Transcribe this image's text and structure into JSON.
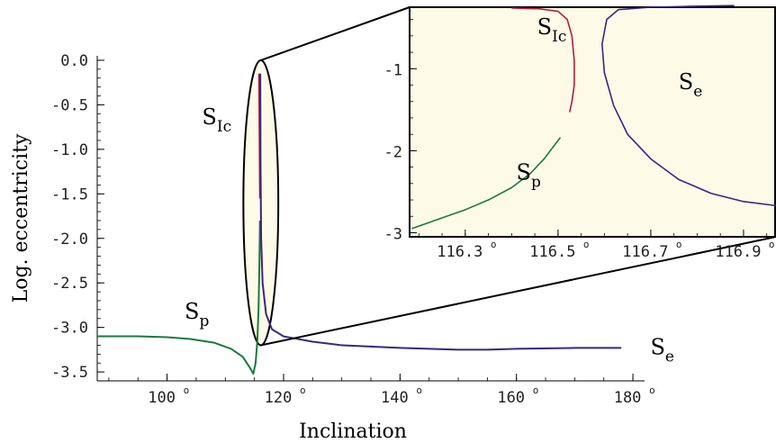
{
  "chart_data": [
    {
      "type": "line",
      "name": "main",
      "xlabel": "Inclination",
      "ylabel": "Log. eccentricity",
      "xlim": [
        88,
        182
      ],
      "ylim": [
        -3.6,
        0.05
      ],
      "x_ticks": [
        100,
        120,
        140,
        160,
        180
      ],
      "x_tick_labels": [
        "100",
        "120",
        "140",
        "160",
        "180"
      ],
      "x_tick_suffix": "o",
      "y_ticks": [
        0.0,
        -0.5,
        -1.0,
        -1.5,
        -2.0,
        -2.5,
        -3.0,
        -3.5
      ],
      "y_tick_labels": [
        "0.0",
        "-0.5",
        "-1.0",
        "-1.5",
        "-2.0",
        "-2.5",
        "-3.0",
        "-3.5"
      ],
      "grid": false,
      "series": [
        {
          "name": "Sp",
          "color": "#1a7a3c",
          "points": [
            [
              88,
              -3.1
            ],
            [
              95,
              -3.1
            ],
            [
              100,
              -3.11
            ],
            [
              104,
              -3.13
            ],
            [
              108,
              -3.17
            ],
            [
              111,
              -3.24
            ],
            [
              113,
              -3.33
            ],
            [
              114.2,
              -3.45
            ],
            [
              114.8,
              -3.52
            ],
            [
              115.2,
              -3.4
            ],
            [
              115.5,
              -3.15
            ],
            [
              115.7,
              -2.8
            ],
            [
              115.85,
              -2.3
            ],
            [
              115.95,
              -1.8
            ]
          ]
        },
        {
          "name": "SIc",
          "color": "#b81c3c",
          "points": [
            [
              115.8,
              -0.15
            ],
            [
              115.85,
              -0.6
            ],
            [
              115.9,
              -1.1
            ],
            [
              115.95,
              -1.55
            ]
          ]
        },
        {
          "name": "Se",
          "color": "#3a2580",
          "points": [
            [
              116.0,
              -0.15
            ],
            [
              116.05,
              -1.2
            ],
            [
              116.15,
              -2.0
            ],
            [
              116.4,
              -2.5
            ],
            [
              117,
              -2.85
            ],
            [
              118,
              -3.02
            ],
            [
              120,
              -3.1
            ],
            [
              125,
              -3.16
            ],
            [
              130,
              -3.2
            ],
            [
              140,
              -3.23
            ],
            [
              145,
              -3.24
            ],
            [
              150,
              -3.25
            ],
            [
              155,
              -3.25
            ],
            [
              160,
              -3.24
            ],
            [
              170,
              -3.23
            ],
            [
              178,
              -3.23
            ]
          ]
        }
      ],
      "annotations": [
        {
          "text": "S",
          "sub": "p",
          "x": 103,
          "y": -2.9
        },
        {
          "text": "S",
          "sub": "Ic",
          "x": 106,
          "y": -0.72
        },
        {
          "text": "S",
          "sub": "e",
          "x": 183,
          "y": -3.3
        }
      ],
      "ellipse_zoom": {
        "center": [
          116.1,
          -1.6
        ],
        "semi_x": 3.0,
        "semi_y": 1.6
      }
    },
    {
      "type": "line",
      "name": "inset",
      "xlim": [
        116.18,
        116.97
      ],
      "ylim": [
        -3.05,
        -0.25
      ],
      "x_ticks": [
        116.3,
        116.5,
        116.7,
        116.9
      ],
      "x_tick_labels": [
        "116.3",
        "116.5",
        "116.7",
        "116.9"
      ],
      "x_tick_suffix": "o",
      "y_ticks": [
        -1,
        -2,
        -3
      ],
      "y_tick_labels": [
        "-1",
        "-2",
        "-3"
      ],
      "grid": false,
      "background": "#fdfbe8",
      "series": [
        {
          "name": "Sp",
          "color": "#1a7a3c",
          "points": [
            [
              116.185,
              -2.95
            ],
            [
              116.25,
              -2.82
            ],
            [
              116.3,
              -2.72
            ],
            [
              116.35,
              -2.6
            ],
            [
              116.4,
              -2.45
            ],
            [
              116.44,
              -2.28
            ],
            [
              116.47,
              -2.1
            ],
            [
              116.49,
              -1.95
            ],
            [
              116.505,
              -1.84
            ]
          ]
        },
        {
          "name": "SIc",
          "color": "#b81c3c",
          "points": [
            [
              116.4,
              -0.26
            ],
            [
              116.46,
              -0.27
            ],
            [
              116.5,
              -0.3
            ],
            [
              116.52,
              -0.4
            ],
            [
              116.53,
              -0.6
            ],
            [
              116.535,
              -0.9
            ],
            [
              116.535,
              -1.2
            ],
            [
              116.53,
              -1.4
            ],
            [
              116.525,
              -1.53
            ]
          ]
        },
        {
          "name": "Se",
          "color": "#3a2580",
          "points": [
            [
              116.88,
              -0.23
            ],
            [
              116.78,
              -0.24
            ],
            [
              116.7,
              -0.25
            ],
            [
              116.63,
              -0.28
            ],
            [
              116.605,
              -0.4
            ],
            [
              116.595,
              -0.7
            ],
            [
              116.6,
              -1.05
            ],
            [
              116.62,
              -1.45
            ],
            [
              116.65,
              -1.8
            ],
            [
              116.7,
              -2.1
            ],
            [
              116.76,
              -2.35
            ],
            [
              116.83,
              -2.52
            ],
            [
              116.9,
              -2.62
            ],
            [
              116.97,
              -2.67
            ]
          ]
        }
      ],
      "annotations": [
        {
          "text": "S",
          "sub": "Ic",
          "x": 116.455,
          "y": -0.58
        },
        {
          "text": "S",
          "sub": "e",
          "x": 116.76,
          "y": -1.25
        },
        {
          "text": "S",
          "sub": "p",
          "x": 116.41,
          "y": -2.35
        }
      ]
    }
  ]
}
